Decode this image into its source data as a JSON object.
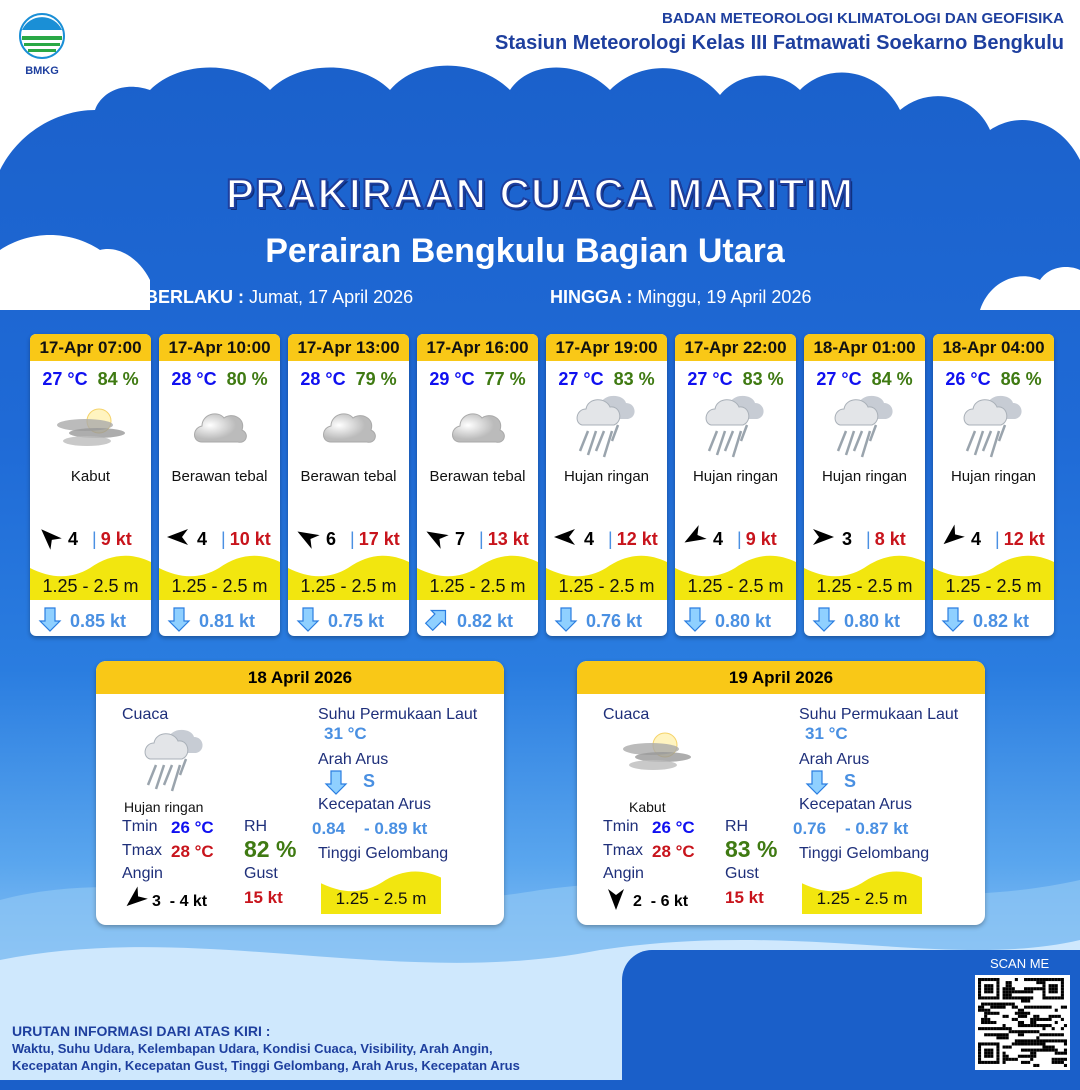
{
  "header": {
    "agency": "BADAN METEOROLOGI KLIMATOLOGI DAN GEOFISIKA",
    "station": "Stasiun Meteorologi Kelas III Fatmawati Soekarno Bengkulu",
    "logo_text": "BMKG"
  },
  "title": "PRAKIRAAN CUACA MARITIM",
  "subtitle": "Perairan Bengkulu Bagian Utara",
  "validity": {
    "from_label": "BERLAKU :",
    "from": "Jumat, 17 April 2026",
    "to_label": "HINGGA :",
    "to": "Minggu, 19 April 2026"
  },
  "forecasts": [
    {
      "time": "17-Apr 07:00",
      "temp": "27 °C",
      "rh": "84 %",
      "icon": "fog-icon",
      "weather": "Kabut",
      "wind_dir_deg": 315,
      "wind": "4",
      "gust": "9 kt",
      "wave": "1.25 - 2.5 m",
      "current_dir_deg": 180,
      "current": "0.85 kt"
    },
    {
      "time": "17-Apr 10:00",
      "temp": "28 °C",
      "rh": "80 %",
      "icon": "cloud-icon",
      "weather": "Berawan tebal",
      "wind_dir_deg": 270,
      "wind": "4",
      "gust": "10 kt",
      "wave": "1.25 - 2.5 m",
      "current_dir_deg": 180,
      "current": "0.81 kt"
    },
    {
      "time": "17-Apr 13:00",
      "temp": "28 °C",
      "rh": "79 %",
      "icon": "cloud-icon",
      "weather": "Berawan tebal",
      "wind_dir_deg": 300,
      "wind": "6",
      "gust": "17 kt",
      "wave": "1.25 - 2.5 m",
      "current_dir_deg": 180,
      "current": "0.75 kt"
    },
    {
      "time": "17-Apr 16:00",
      "temp": "29 °C",
      "rh": "77 %",
      "icon": "cloud-icon",
      "weather": "Berawan tebal",
      "wind_dir_deg": 300,
      "wind": "7",
      "gust": "13 kt",
      "wave": "1.25 - 2.5 m",
      "current_dir_deg": 45,
      "current": "0.82 kt"
    },
    {
      "time": "17-Apr 19:00",
      "temp": "27 °C",
      "rh": "83 %",
      "icon": "rain-icon",
      "weather": "Hujan ringan",
      "wind_dir_deg": 270,
      "wind": "4",
      "gust": "12 kt",
      "wave": "1.25 - 2.5 m",
      "current_dir_deg": 180,
      "current": "0.76 kt"
    },
    {
      "time": "17-Apr 22:00",
      "temp": "27 °C",
      "rh": "83 %",
      "icon": "rain-icon",
      "weather": "Hujan ringan",
      "wind_dir_deg": 240,
      "wind": "4",
      "gust": "9 kt",
      "wave": "1.25 - 2.5 m",
      "current_dir_deg": 180,
      "current": "0.80 kt"
    },
    {
      "time": "18-Apr 01:00",
      "temp": "27 °C",
      "rh": "84 %",
      "icon": "rain-icon",
      "weather": "Hujan ringan",
      "wind_dir_deg": 90,
      "wind": "3",
      "gust": "8 kt",
      "wave": "1.25 - 2.5 m",
      "current_dir_deg": 180,
      "current": "0.80 kt"
    },
    {
      "time": "18-Apr 04:00",
      "temp": "26 °C",
      "rh": "86 %",
      "icon": "rain-icon",
      "weather": "Hujan ringan",
      "wind_dir_deg": 230,
      "wind": "4",
      "gust": "12 kt",
      "wave": "1.25 - 2.5 m",
      "current_dir_deg": 180,
      "current": "0.82 kt"
    }
  ],
  "labels": {
    "weather": "Cuaca",
    "sst": "Suhu Permukaan Laut",
    "current_dir": "Arah Arus",
    "current_speed": "Kecepatan Arus",
    "wave": "Tinggi Gelombang",
    "tmin": "Tmin",
    "tmax": "Tmax",
    "rh": "RH",
    "wind": "Angin",
    "gust": "Gust"
  },
  "daily": [
    {
      "date": "18 April 2026",
      "icon": "rain-icon",
      "weather": "Hujan ringan",
      "tmin": "26 °C",
      "tmax": "28 °C",
      "rh": "82 %",
      "wind_dir_deg": 230,
      "wind": "3  - 4 kt",
      "gust": "15 kt",
      "sst": "31 °C",
      "current_dir": "S",
      "current_dir_deg": 180,
      "current_min": "0.84",
      "current_max": "- 0.89 kt",
      "wave": "1.25 - 2.5 m"
    },
    {
      "date": "19 April 2026",
      "icon": "fog-icon",
      "weather": "Kabut",
      "tmin": "26 °C",
      "tmax": "28 °C",
      "rh": "83 %",
      "wind_dir_deg": 180,
      "wind": "2  - 6 kt",
      "gust": "15 kt",
      "sst": "31 °C",
      "current_dir": "S",
      "current_dir_deg": 180,
      "current_min": "0.76",
      "current_max": "- 0.87 kt",
      "wave": "1.25 - 2.5 m"
    }
  ],
  "footer": {
    "heading": "URUTAN INFORMASI DARI ATAS KIRI :",
    "line1": "Waktu, Suhu Udara, Kelembapan Udara, Kondisi Cuaca, Visibility, Arah Angin,",
    "line2": "Kecepatan Angin, Kecepatan Gust, Tinggi Gelombang, Arah Arus, Kecepatan Arus",
    "scan": "SCAN ME"
  },
  "colors": {
    "header_yellow": "#f9c817",
    "wave_yellow": "#f2e60f",
    "temp": "#1010f0",
    "rh": "#3f7a12",
    "gust": "#c8141c",
    "current": "#4a90e2"
  }
}
